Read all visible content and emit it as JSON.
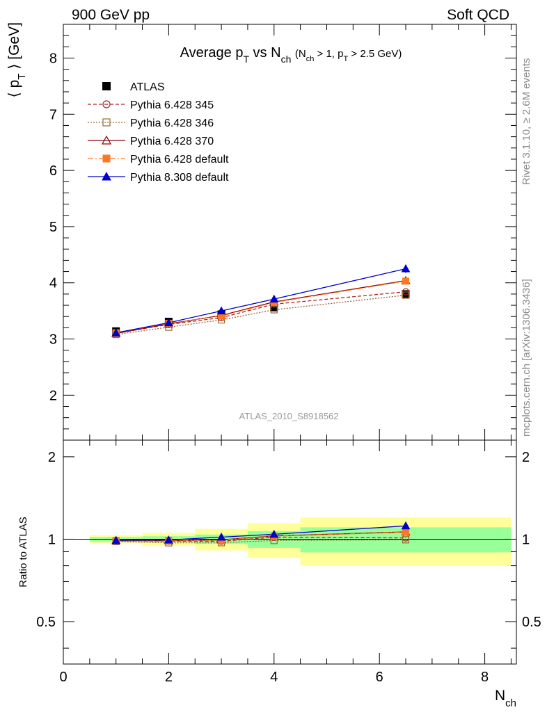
{
  "header": {
    "left": "900 GeV pp",
    "right": "Soft QCD"
  },
  "side": {
    "top": "Rivet 3.1.10, ≥ 2.6M events",
    "bottom": "mcplots.cern.ch [arXiv:1306.3436]"
  },
  "chart_data": {
    "type": "line",
    "title": "Average p_T vs N_ch (N_ch > 1, p_T > 2.5 GeV)",
    "analysis_label": "ATLAS_2010_S8918562",
    "xlabel": "N_ch",
    "ylabel": "⟨ p_T ⟩ [GeV]",
    "ratio_ylabel": "Ratio to ATLAS",
    "xlim": [
      0,
      8.6
    ],
    "ylim": [
      1.2,
      8.6
    ],
    "ratio_ylim": [
      0.35,
      2.3
    ],
    "x_ticks": [
      "0",
      "2",
      "4",
      "6",
      "8"
    ],
    "y_ticks": [
      "2",
      "3",
      "4",
      "5",
      "6",
      "7",
      "8"
    ],
    "ratio_y_ticks": [
      "0.5",
      "1",
      "2"
    ],
    "legend_position": "top-left",
    "x": [
      1,
      2,
      3,
      4,
      6.5
    ],
    "x_bins": [
      [
        0.5,
        1.5
      ],
      [
        1.5,
        2.5
      ],
      [
        2.5,
        3.5
      ],
      [
        3.5,
        4.5
      ],
      [
        4.5,
        8.5
      ]
    ],
    "data": {
      "name": "ATLAS",
      "values": [
        3.14,
        3.31,
        3.44,
        3.56,
        3.8
      ],
      "ratio_band_green": [
        0.018,
        0.025,
        0.04,
        0.07,
        0.105
      ],
      "ratio_band_yellow": [
        0.035,
        0.055,
        0.09,
        0.145,
        0.2
      ]
    },
    "series": [
      {
        "name": "Pythia 6.428 345",
        "color": "#aa2222",
        "dash": "5,3",
        "marker": "open-circle",
        "values": [
          3.1,
          3.26,
          3.38,
          3.62,
          3.84
        ]
      },
      {
        "name": "Pythia 6.428 346",
        "color": "#996633",
        "dash": "2,2",
        "marker": "open-square",
        "values": [
          3.08,
          3.21,
          3.34,
          3.52,
          3.78
        ]
      },
      {
        "name": "Pythia 6.428 370",
        "color": "#8b0000",
        "dash": "",
        "marker": "open-triangle",
        "values": [
          3.1,
          3.27,
          3.42,
          3.66,
          4.04
        ]
      },
      {
        "name": "Pythia 6.428 default",
        "color": "#ff7722",
        "dash": "8,3,2,3",
        "marker": "filled-square",
        "values": [
          3.11,
          3.28,
          3.41,
          3.65,
          4.03
        ]
      },
      {
        "name": "Pythia 8.308 default",
        "color": "#0000cc",
        "dash": "",
        "marker": "filled-triangle",
        "values": [
          3.11,
          3.29,
          3.5,
          3.71,
          4.25
        ]
      }
    ]
  }
}
